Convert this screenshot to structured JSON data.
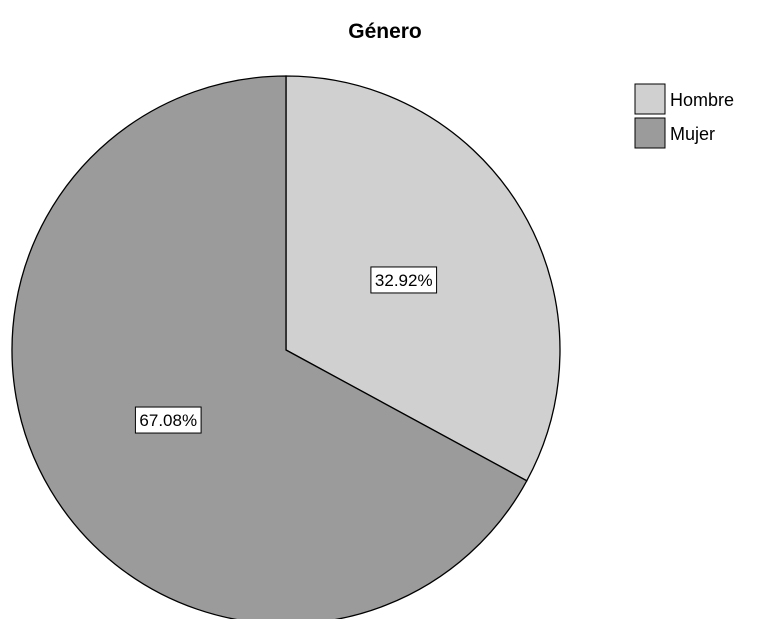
{
  "chart_data": {
    "type": "pie",
    "title": "Género",
    "labels": [
      "Hombre",
      "Mujer"
    ],
    "values": [
      32.92,
      67.08
    ],
    "data_labels": [
      "32.92%",
      "67.08%"
    ],
    "colors": [
      "#d0d0d0",
      "#9b9b9b"
    ],
    "start_angle": "12 o'clock",
    "direction": "clockwise",
    "legend": {
      "position": "top-right",
      "entries": [
        "Hombre",
        "Mujer"
      ]
    }
  }
}
